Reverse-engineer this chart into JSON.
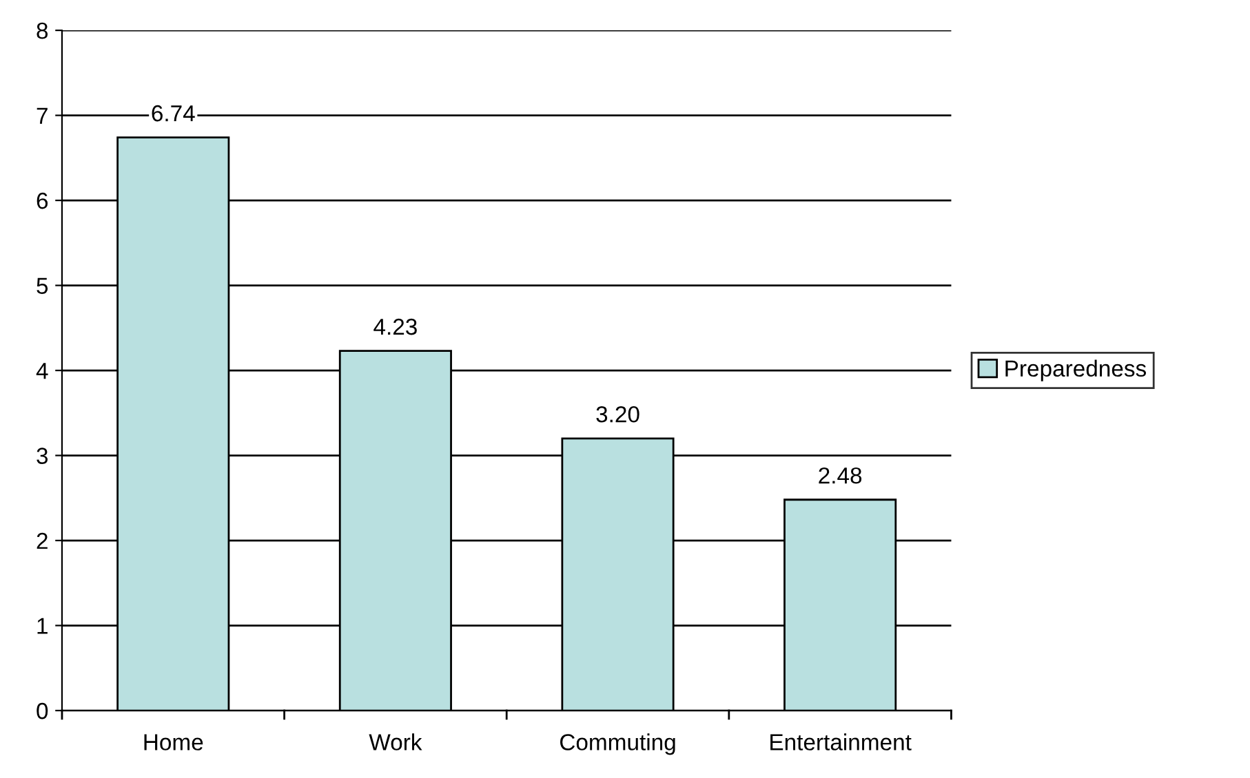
{
  "chart_data": {
    "type": "bar",
    "categories": [
      "Home",
      "Work",
      "Commuting",
      "Entertainment"
    ],
    "series": [
      {
        "name": "Preparedness",
        "color": "#b9e0e0",
        "values": [
          6.74,
          4.23,
          3.2,
          2.48
        ]
      }
    ],
    "value_labels": [
      "6.74",
      "4.23",
      "3.20",
      "2.48"
    ],
    "ylim": [
      0,
      8
    ],
    "yticks": [
      0,
      1,
      2,
      3,
      4,
      5,
      6,
      7,
      8
    ],
    "grid": "y",
    "legend": "right"
  }
}
